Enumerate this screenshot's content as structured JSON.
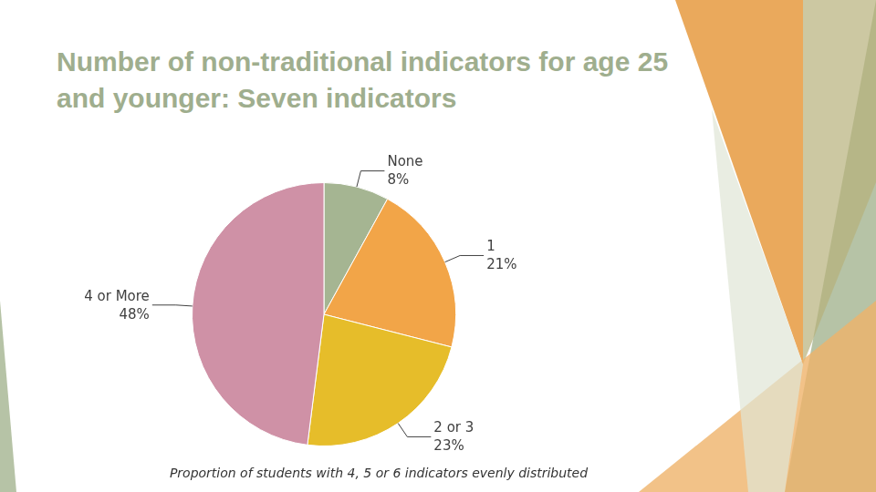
{
  "chart_data": {
    "type": "pie",
    "title": "Number of non-traditional indicators for age 25 and younger: Seven indicators",
    "categories": [
      "None",
      "1",
      "2 or 3",
      "4 or More"
    ],
    "values": [
      8,
      21,
      23,
      48
    ],
    "value_labels": [
      "8%",
      "21%",
      "23%",
      "48%"
    ],
    "colors": [
      "#a5b592",
      "#f2a548",
      "#e6bd2a",
      "#cf91a6"
    ],
    "data_labels": true,
    "annotations": [
      "Proportion of students with 4, 5 or 6 indicators evenly distributed"
    ]
  }
}
